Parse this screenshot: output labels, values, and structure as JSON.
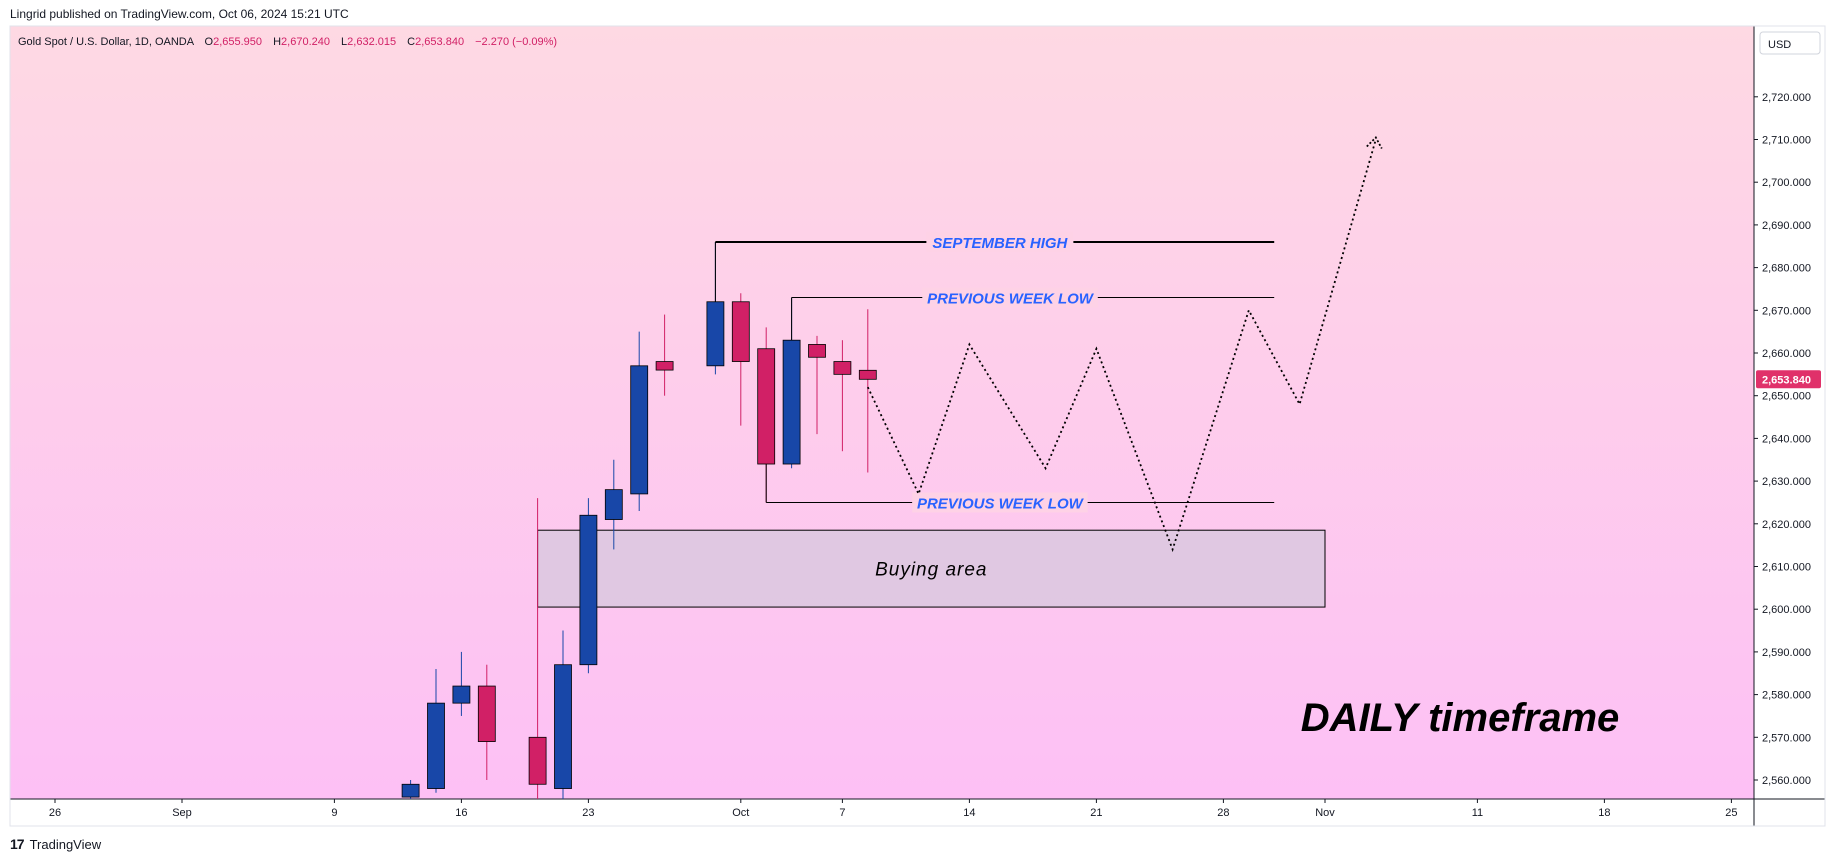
{
  "header": {
    "publish_line": "Lingrid published on TradingView.com, Oct 06, 2024 15:21 UTC"
  },
  "symbol_bar": {
    "symbol": "Gold Spot / U.S. Dollar, 1D, OANDA",
    "o_label": "O",
    "o_value": "2,655.950",
    "h_label": "H",
    "h_value": "2,670.240",
    "l_label": "L",
    "l_value": "2,632.015",
    "c_label": "C",
    "c_value": "2,653.840",
    "change": "−2.270 (−0.09%)"
  },
  "price_axis": {
    "currency": "USD",
    "ticks": [
      2560,
      2570,
      2580,
      2590,
      2600,
      2610,
      2620,
      2630,
      2640,
      2650,
      2660,
      2670,
      2680,
      2690,
      2700,
      2710,
      2720
    ],
    "tick_labels": [
      "2,560.000",
      "2,570.000",
      "2,580.000",
      "2,590.000",
      "2,600.000",
      "2,610.000",
      "2,620.000",
      "2,630.000",
      "2,640.000",
      "2,650.000",
      "2,660.000",
      "2,670.000",
      "2,680.000",
      "2,690.000",
      "2,700.000",
      "2,710.000",
      "2,720.000"
    ],
    "last_price": 2653.84,
    "last_price_label": "2,653.840"
  },
  "time_axis": {
    "labels": [
      "26",
      "Sep",
      "9",
      "16",
      "23",
      "Oct",
      "7",
      "14",
      "21",
      "28",
      "Nov",
      "11",
      "18",
      "25"
    ],
    "label_day_index": [
      -5,
      0,
      6,
      11,
      16,
      22,
      26,
      31,
      36,
      41,
      45,
      51,
      56,
      61
    ]
  },
  "colors": {
    "up": "#1847a8",
    "down": "#d12066",
    "bg_top": "#fed9e3",
    "bg_bottom": "#fdc0f5",
    "annotation_blue": "#2962ff",
    "last_price_bg": "#e0316a"
  },
  "chart_data": {
    "type": "candlestick",
    "title": "Gold Spot / U.S. Dollar, 1D, OANDA",
    "ylim": [
      2555,
      2727
    ],
    "candles": [
      {
        "day": 9,
        "o": 2556.0,
        "h": 2560.0,
        "l": 2553.0,
        "c": 2559.0
      },
      {
        "day": 10,
        "o": 2558.0,
        "h": 2586.0,
        "l": 2557.0,
        "c": 2578.0
      },
      {
        "day": 11,
        "o": 2578.0,
        "h": 2590.0,
        "l": 2575.0,
        "c": 2582.0
      },
      {
        "day": 12,
        "o": 2582.0,
        "h": 2587.0,
        "l": 2560.0,
        "c": 2569.0
      },
      {
        "day": 14,
        "o": 2570.0,
        "h": 2626.0,
        "l": 2547.0,
        "c": 2559.0
      },
      {
        "day": 15,
        "o": 2558.0,
        "h": 2595.0,
        "l": 2555.0,
        "c": 2587.0
      },
      {
        "day": 16,
        "o": 2587.0,
        "h": 2626.0,
        "l": 2585.0,
        "c": 2622.0
      },
      {
        "day": 17,
        "o": 2621.0,
        "h": 2635.0,
        "l": 2614.0,
        "c": 2628.0
      },
      {
        "day": 18,
        "o": 2627.0,
        "h": 2665.0,
        "l": 2623.0,
        "c": 2657.0
      },
      {
        "day": 19,
        "o": 2658.0,
        "h": 2669.0,
        "l": 2650.0,
        "c": 2656.0
      },
      {
        "day": 21,
        "o": 2657.0,
        "h": 2686.0,
        "l": 2655.0,
        "c": 2672.0
      },
      {
        "day": 22,
        "o": 2672.0,
        "h": 2674.0,
        "l": 2643.0,
        "c": 2658.0
      },
      {
        "day": 23,
        "o": 2661.0,
        "h": 2666.0,
        "l": 2625.0,
        "c": 2634.0
      },
      {
        "day": 24,
        "o": 2634.0,
        "h": 2673.0,
        "l": 2633.0,
        "c": 2663.0
      },
      {
        "day": 25,
        "o": 2662.0,
        "h": 2664.0,
        "l": 2641.0,
        "c": 2659.0
      },
      {
        "day": 26,
        "o": 2658.0,
        "h": 2663.0,
        "l": 2637.0,
        "c": 2655.0
      },
      {
        "day": 27,
        "o": 2655.95,
        "h": 2670.24,
        "l": 2632.015,
        "c": 2653.84
      }
    ],
    "annotations": {
      "september_high": {
        "label": "SEPTEMBER HIGH",
        "price": 2686.0,
        "day_start": 21,
        "day_end": 43
      },
      "previous_week_low_upper": {
        "label": "PREVIOUS WEEK LOW",
        "price": 2673.0,
        "day_start": 24,
        "day_end": 43
      },
      "previous_week_low_lower": {
        "label": "PREVIOUS WEEK LOW",
        "price": 2625.0,
        "day_start": 23,
        "day_end": 43
      },
      "buying_area": {
        "label": "Buying area",
        "price_top": 2618.5,
        "price_bottom": 2600.5,
        "day_start": 14,
        "day_end": 45
      },
      "projection_path": [
        {
          "day": 27,
          "price": 2652
        },
        {
          "day": 29,
          "price": 2627
        },
        {
          "day": 31,
          "price": 2662
        },
        {
          "day": 34,
          "price": 2633
        },
        {
          "day": 36,
          "price": 2661
        },
        {
          "day": 39,
          "price": 2614
        },
        {
          "day": 42,
          "price": 2670
        },
        {
          "day": 44,
          "price": 2648
        },
        {
          "day": 47,
          "price": 2710
        }
      ],
      "timeframe_label": "DAILY timeframe"
    }
  },
  "footer": {
    "brand_logo": "17",
    "brand": "TradingView"
  }
}
